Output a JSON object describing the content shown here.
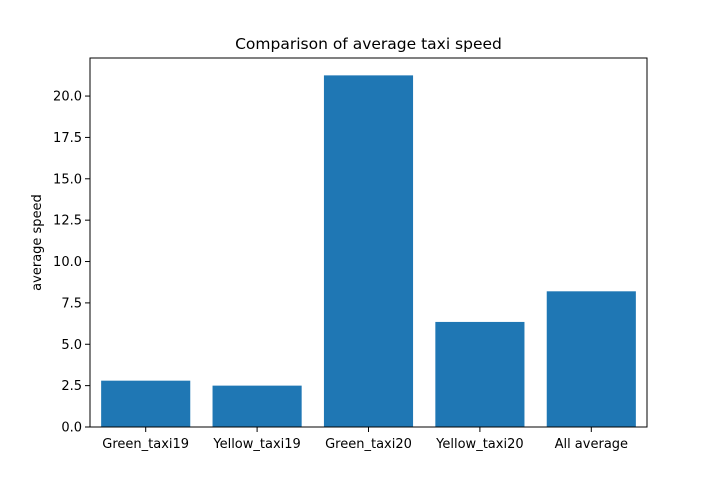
{
  "chart_data": {
    "type": "bar",
    "title": "Comparison of average taxi speed",
    "xlabel": "",
    "ylabel": "average speed",
    "categories": [
      "Green_taxi19",
      "Yellow_taxi19",
      "Green_taxi20",
      "Yellow_taxi20",
      "All average"
    ],
    "values": [
      2.8,
      2.5,
      21.25,
      6.35,
      8.2
    ],
    "ylim": [
      0,
      22.3
    ],
    "yticks": [
      "0.0",
      "2.5",
      "5.0",
      "7.5",
      "10.0",
      "12.5",
      "15.0",
      "17.5",
      "20.0"
    ],
    "grid": false,
    "legend": "none",
    "colors": {
      "bar": "#1f77b4",
      "axis": "#000000",
      "background": "#ffffff"
    }
  }
}
